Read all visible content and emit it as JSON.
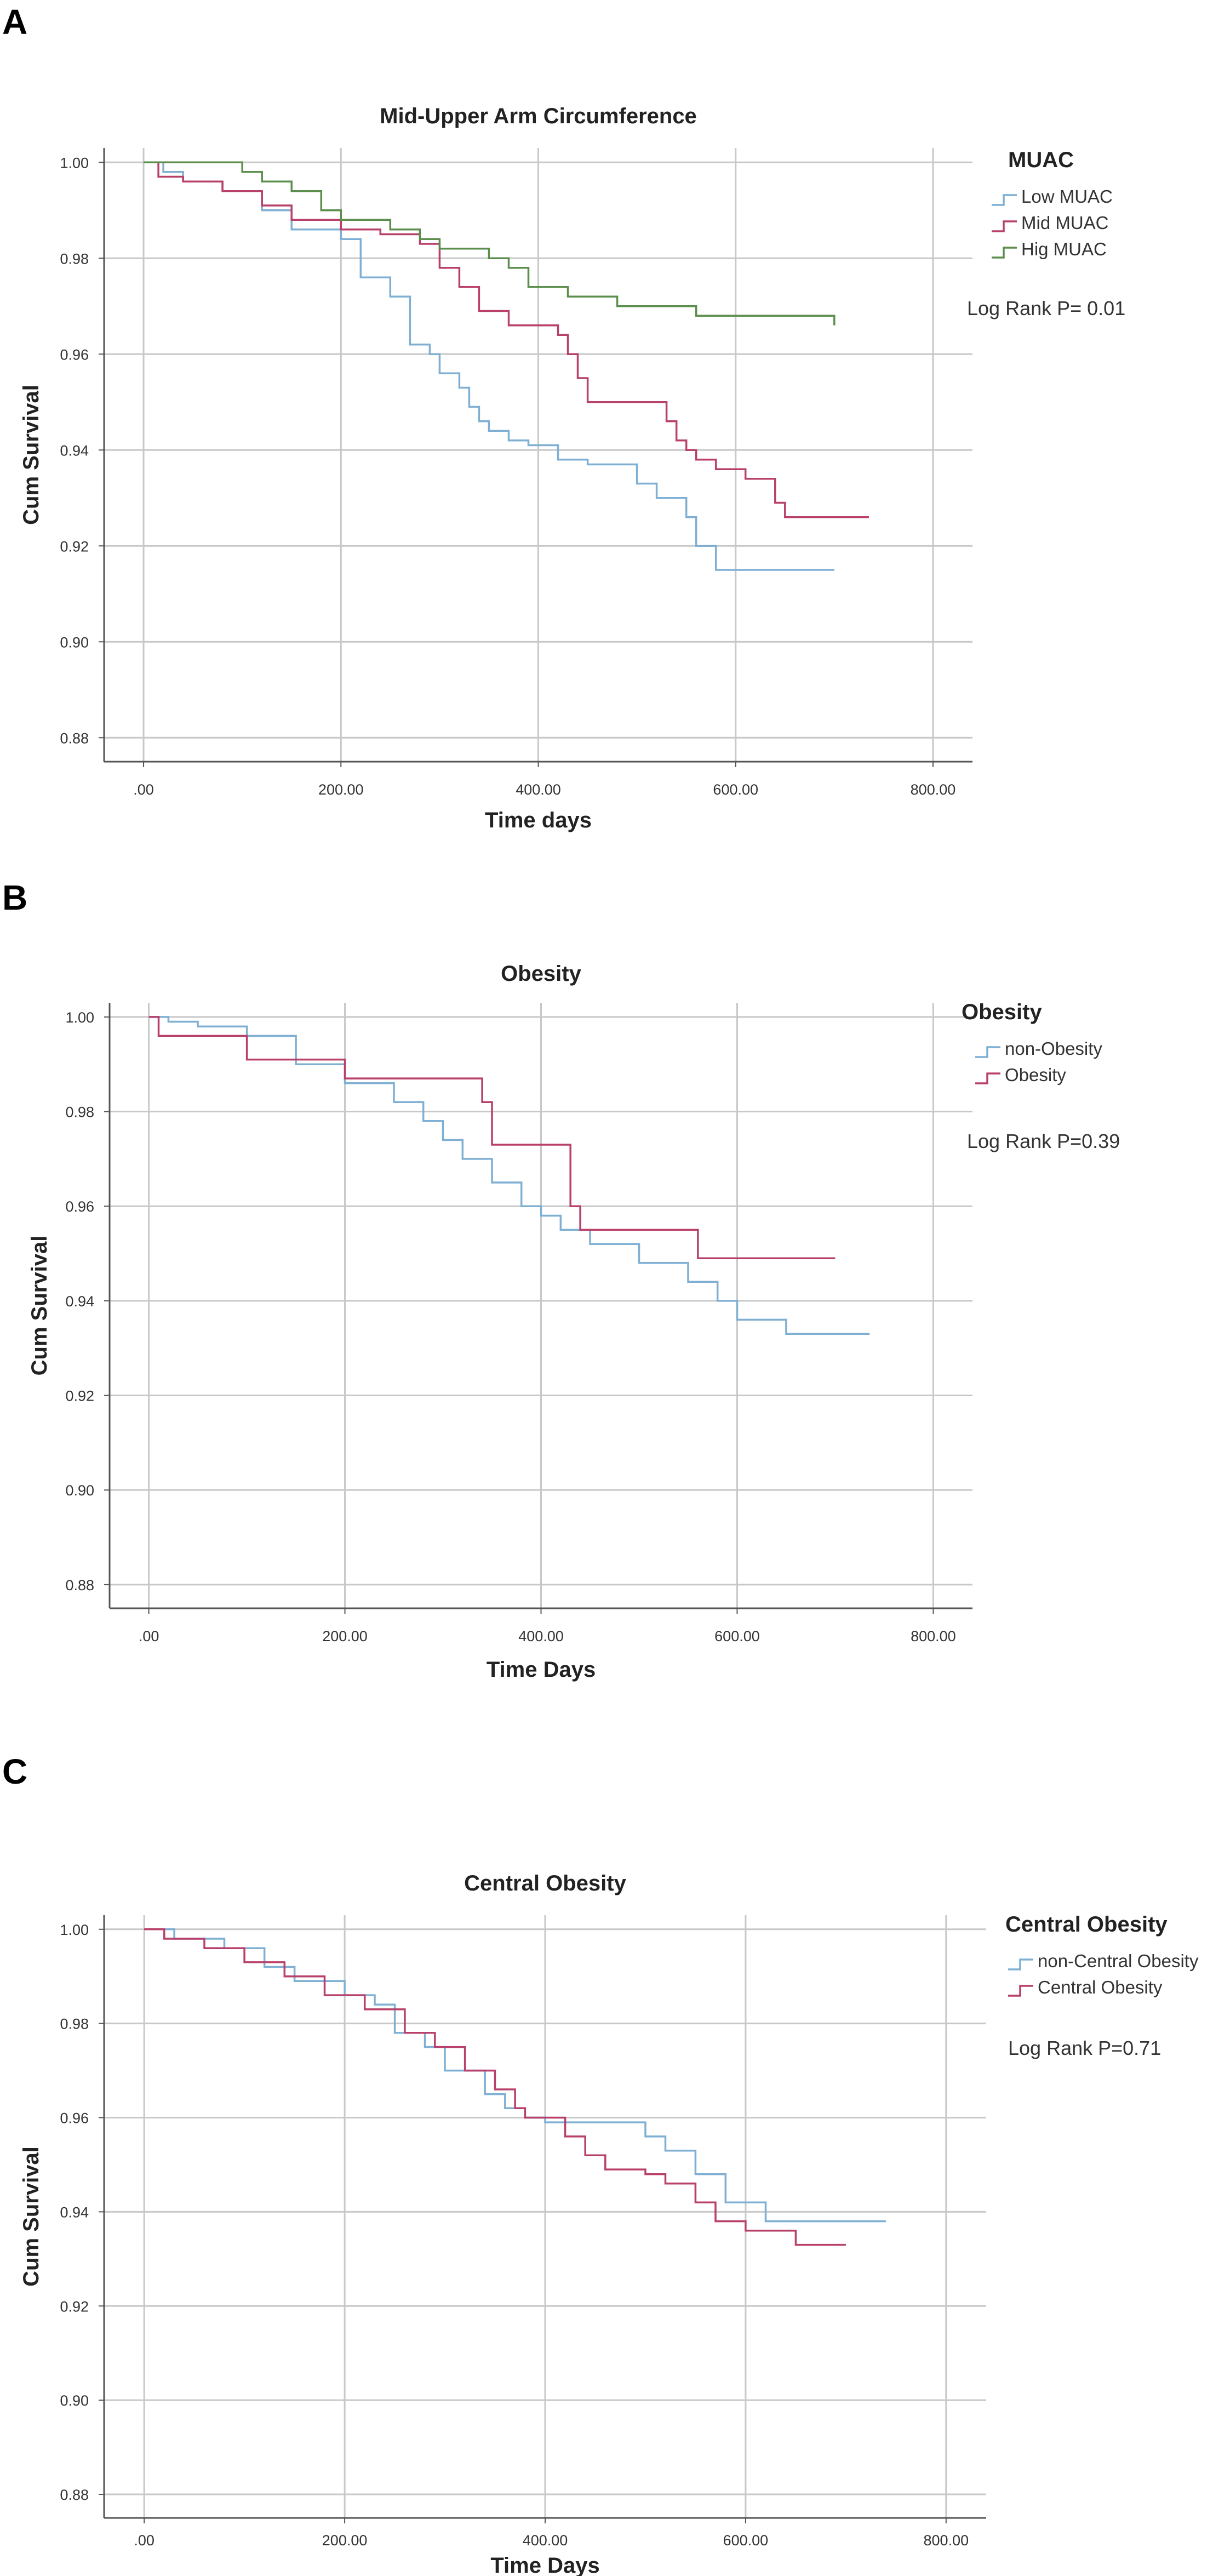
{
  "chart_data": [
    {
      "type": "line",
      "panel_label": "A",
      "title": "Mid-Upper Arm Circumference",
      "xlabel": "Time days",
      "ylabel": "Cum Survival",
      "xlim": [
        -40,
        840
      ],
      "ylim": [
        0.875,
        1.003
      ],
      "x_ticks": [
        0,
        200,
        400,
        600,
        800
      ],
      "x_tick_labels": [
        ".00",
        "200.00",
        "400.00",
        "600.00",
        "800.00"
      ],
      "y_ticks": [
        0.88,
        0.9,
        0.92,
        0.94,
        0.96,
        0.98,
        1.0
      ],
      "y_tick_labels": [
        "0.88",
        "0.90",
        "0.92",
        "0.94",
        "0.96",
        "0.98",
        "1.00"
      ],
      "grid": true,
      "legend_title": "MUAC",
      "legend_position": "top-right",
      "annotation": "Log Rank P= 0.01",
      "series": [
        {
          "name": "Low MUAC",
          "color": "#7fb0d4",
          "step": true,
          "x": [
            0,
            20,
            40,
            80,
            120,
            150,
            200,
            220,
            250,
            270,
            290,
            300,
            320,
            330,
            340,
            350,
            370,
            390,
            420,
            450,
            500,
            520,
            550,
            560,
            580,
            700
          ],
          "y": [
            1.0,
            0.998,
            0.996,
            0.994,
            0.99,
            0.986,
            0.984,
            0.976,
            0.972,
            0.962,
            0.96,
            0.956,
            0.953,
            0.949,
            0.946,
            0.944,
            0.942,
            0.941,
            0.938,
            0.937,
            0.933,
            0.93,
            0.926,
            0.92,
            0.915,
            0.915
          ]
        },
        {
          "name": "Mid MUAC",
          "color": "#b8406b",
          "step": true,
          "x": [
            0,
            15,
            40,
            80,
            120,
            150,
            200,
            240,
            280,
            300,
            320,
            340,
            370,
            420,
            430,
            440,
            450,
            470,
            530,
            540,
            550,
            560,
            580,
            610,
            640,
            650,
            735
          ],
          "y": [
            1.0,
            0.997,
            0.996,
            0.994,
            0.991,
            0.988,
            0.986,
            0.985,
            0.983,
            0.978,
            0.974,
            0.969,
            0.966,
            0.964,
            0.96,
            0.955,
            0.95,
            0.95,
            0.946,
            0.942,
            0.94,
            0.938,
            0.936,
            0.934,
            0.929,
            0.926,
            0.926
          ]
        },
        {
          "name": "Hig MUAC",
          "color": "#5c8f4e",
          "step": true,
          "x": [
            0,
            100,
            120,
            150,
            180,
            200,
            250,
            280,
            300,
            350,
            370,
            390,
            430,
            480,
            560,
            700
          ],
          "y": [
            1.0,
            0.998,
            0.996,
            0.994,
            0.99,
            0.988,
            0.986,
            0.984,
            0.982,
            0.98,
            0.978,
            0.974,
            0.972,
            0.97,
            0.968,
            0.966
          ]
        }
      ]
    },
    {
      "type": "line",
      "panel_label": "B",
      "title": "Obesity",
      "xlabel": "Time Days",
      "ylabel": "Cum Survival",
      "xlim": [
        -40,
        840
      ],
      "ylim": [
        0.875,
        1.003
      ],
      "x_ticks": [
        0,
        200,
        400,
        600,
        800
      ],
      "x_tick_labels": [
        ".00",
        "200.00",
        "400.00",
        "600.00",
        "800.00"
      ],
      "y_ticks": [
        0.88,
        0.9,
        0.92,
        0.94,
        0.96,
        0.98,
        1.0
      ],
      "y_tick_labels": [
        "0.88",
        "0.90",
        "0.92",
        "0.94",
        "0.96",
        "0.98",
        "1.00"
      ],
      "grid": true,
      "legend_title": "Obesity",
      "legend_position": "top-right",
      "annotation": "Log Rank P=0.39",
      "series": [
        {
          "name": "non-Obesity",
          "color": "#7fb0d4",
          "step": true,
          "x": [
            0,
            20,
            50,
            100,
            150,
            200,
            250,
            280,
            300,
            320,
            350,
            380,
            400,
            420,
            450,
            500,
            550,
            580,
            600,
            650,
            735
          ],
          "y": [
            1.0,
            0.999,
            0.998,
            0.996,
            0.99,
            0.986,
            0.982,
            0.978,
            0.974,
            0.97,
            0.965,
            0.96,
            0.958,
            0.955,
            0.952,
            0.948,
            0.944,
            0.94,
            0.936,
            0.933,
            0.933
          ]
        },
        {
          "name": "Obesity",
          "color": "#b8406b",
          "step": true,
          "x": [
            0,
            10,
            100,
            200,
            250,
            340,
            350,
            420,
            430,
            440,
            560,
            700
          ],
          "y": [
            1.0,
            0.996,
            0.991,
            0.987,
            0.987,
            0.982,
            0.973,
            0.973,
            0.96,
            0.955,
            0.949,
            0.949
          ]
        }
      ]
    },
    {
      "type": "line",
      "panel_label": "C",
      "title": "Central Obesity",
      "xlabel": "Time Days",
      "ylabel": "Cum Survival",
      "xlim": [
        -40,
        840
      ],
      "ylim": [
        0.875,
        1.003
      ],
      "x_ticks": [
        0,
        200,
        400,
        600,
        800
      ],
      "x_tick_labels": [
        ".00",
        "200.00",
        "400.00",
        "600.00",
        "800.00"
      ],
      "y_ticks": [
        0.88,
        0.9,
        0.92,
        0.94,
        0.96,
        0.98,
        1.0
      ],
      "y_tick_labels": [
        "0.88",
        "0.90",
        "0.92",
        "0.94",
        "0.96",
        "0.98",
        "1.00"
      ],
      "grid": true,
      "legend_title": "Central Obesity",
      "legend_position": "top-right",
      "annotation": "Log Rank P=0.71",
      "series": [
        {
          "name": "non-Central Obesity",
          "color": "#7fb0d4",
          "step": true,
          "x": [
            0,
            30,
            80,
            120,
            150,
            200,
            230,
            250,
            280,
            300,
            340,
            360,
            380,
            400,
            500,
            520,
            550,
            580,
            620,
            740
          ],
          "y": [
            1.0,
            0.998,
            0.996,
            0.992,
            0.989,
            0.986,
            0.984,
            0.978,
            0.975,
            0.97,
            0.965,
            0.962,
            0.96,
            0.959,
            0.956,
            0.953,
            0.948,
            0.942,
            0.938,
            0.938
          ]
        },
        {
          "name": "Central Obesity",
          "color": "#b8406b",
          "step": true,
          "x": [
            0,
            20,
            60,
            100,
            140,
            180,
            220,
            260,
            290,
            320,
            350,
            370,
            380,
            420,
            440,
            460,
            500,
            520,
            550,
            570,
            600,
            650,
            700
          ],
          "y": [
            1.0,
            0.998,
            0.996,
            0.993,
            0.99,
            0.986,
            0.983,
            0.978,
            0.975,
            0.97,
            0.966,
            0.962,
            0.96,
            0.956,
            0.952,
            0.949,
            0.948,
            0.946,
            0.942,
            0.938,
            0.936,
            0.933,
            0.933
          ]
        }
      ]
    }
  ]
}
